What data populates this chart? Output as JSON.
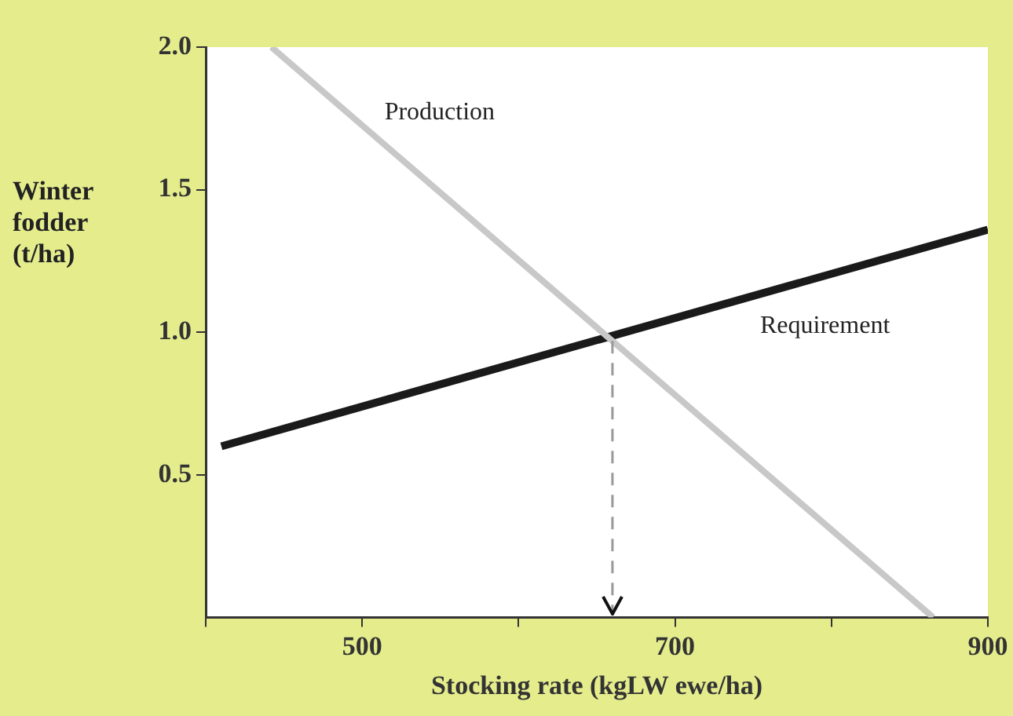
{
  "chart_data": {
    "type": "line",
    "xlabel": "Stocking rate (kgLW ewe/ha)",
    "ylabel": "Winter fodder (t/ha)",
    "xlim": [
      400,
      900
    ],
    "xticks": [
      {
        "value": 400,
        "label": null
      },
      500,
      {
        "value": 600,
        "label": null
      },
      700,
      {
        "value": 800,
        "label": null
      },
      900
    ],
    "ylim": [
      0,
      2
    ],
    "yticks": [
      {
        "value": 0.5,
        "label": "0.5"
      },
      {
        "value": 1,
        "label": "1.0"
      },
      {
        "value": 1.5,
        "label": "1.5"
      },
      {
        "value": 2,
        "label": "2.0"
      }
    ],
    "series": [
      {
        "name": "Production",
        "color": "#c8c8c8",
        "x": [
          442,
          865
        ],
        "values": [
          2.0,
          0
        ]
      },
      {
        "name": "Requirement",
        "color": "#1a1a1a",
        "x": [
          410,
          900
        ],
        "values": [
          0.6,
          1.36
        ]
      }
    ],
    "ref_lines": [
      {
        "axis": "x",
        "value": 660,
        "color": "#999999",
        "line_style": "dashed"
      }
    ],
    "grid": false,
    "legend": false,
    "marker": "none",
    "line_style": "solid"
  }
}
